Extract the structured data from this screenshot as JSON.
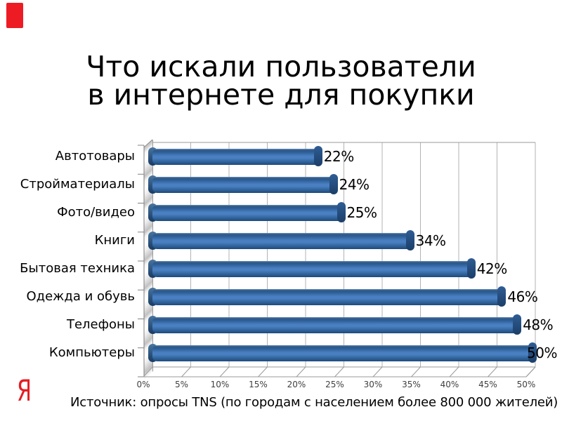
{
  "accent": {
    "color": "#ed1c24"
  },
  "title": {
    "line1": "Что искали пользователи",
    "line2": "в интернете для покупки"
  },
  "logo": {
    "text": "Я",
    "color": "#e31e24"
  },
  "footer": {
    "source": "Источник: опросы TNS (по городам с населением более 800 000 жителей)"
  },
  "chart_data": {
    "type": "bar",
    "orientation": "horizontal",
    "style": "3d",
    "title": "",
    "xlabel": "",
    "ylabel": "",
    "categories": [
      "Автотовары",
      "Стройматериалы",
      "Фото/видео",
      "Книги",
      "Бытовая техника",
      "Одежда и обувь",
      "Телефоны",
      "Компьютеры"
    ],
    "values": [
      22,
      24,
      25,
      34,
      42,
      46,
      48,
      50
    ],
    "value_labels": [
      "22%",
      "24%",
      "25%",
      "34%",
      "42%",
      "46%",
      "48%",
      "50%"
    ],
    "xlim": [
      0,
      50
    ],
    "x_ticks": [
      "0%",
      "5%",
      "10%",
      "15%",
      "20%",
      "25%",
      "30%",
      "35%",
      "40%",
      "45%",
      "50%"
    ],
    "grid": true,
    "legend": false,
    "bar_color": "#3a6fae",
    "gridline_color": "#b3b3b3"
  }
}
